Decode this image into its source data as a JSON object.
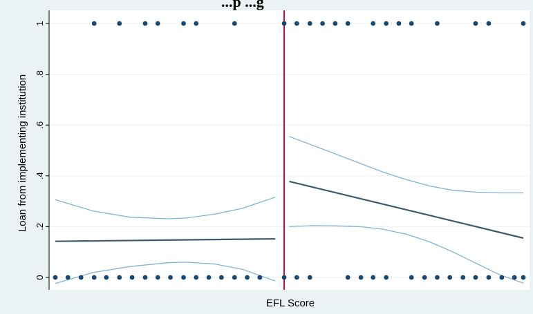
{
  "chart_data": {
    "type": "scatter",
    "title": "...p    ...g",
    "xlabel": "EFL Score",
    "ylabel": "Loan from implementing institution",
    "x_range": [
      0,
      100
    ],
    "ylim": [
      0,
      1
    ],
    "yticks": [
      {
        "value": 0,
        "label": "0"
      },
      {
        "value": 0.2,
        "label": ".2"
      },
      {
        "value": 0.4,
        "label": ".4"
      },
      {
        "value": 0.6,
        "label": ".6"
      },
      {
        "value": 0.8,
        "label": ".8"
      },
      {
        "value": 1,
        "label": "1"
      }
    ],
    "grid": true,
    "legend": "none",
    "cutoff_x": 48.9,
    "colors": {
      "background": "#eaf2f3",
      "plot_background": "#ffffff",
      "points": "#1a476f",
      "fit_line": "#3e5b6e",
      "ci_line": "#7fb2d6",
      "cutoff": "#b0103a",
      "grid": "#eaf2f3"
    },
    "points_y1_x": [
      8.3,
      13.7,
      19.2,
      21.9,
      27.4,
      30.1,
      38.3,
      48.9,
      51.6,
      54.4,
      57.1,
      59.8,
      62.5,
      67.9,
      70.7,
      73.4,
      76.1,
      81.6,
      89.8,
      92.6,
      100
    ],
    "points_y0_x": [
      0,
      2.7,
      5.5,
      8.3,
      10.9,
      13.7,
      16.4,
      19.2,
      21.9,
      24.6,
      27.4,
      30.1,
      32.8,
      35.5,
      38.3,
      41,
      43.7,
      48.9,
      51.6,
      54.4,
      62.5,
      65.3,
      67.9,
      70.7,
      76.1,
      78.9,
      81.6,
      84.3,
      87.1,
      89.8,
      92.6,
      95.4,
      98.1,
      100
    ],
    "series": [
      {
        "side": "left",
        "kind": "fit",
        "x": [
          0,
          47
        ],
        "y": [
          0.142,
          0.152
        ]
      },
      {
        "side": "left",
        "kind": "ci_upper",
        "x": [
          0,
          8,
          16,
          24,
          28,
          34,
          40,
          47
        ],
        "y": [
          0.306,
          0.262,
          0.237,
          0.231,
          0.234,
          0.249,
          0.272,
          0.316
        ]
      },
      {
        "side": "left",
        "kind": "ci_lower",
        "x": [
          0,
          8,
          16,
          24,
          28,
          34,
          40,
          47
        ],
        "y": [
          -0.024,
          0.019,
          0.043,
          0.058,
          0.06,
          0.053,
          0.032,
          -0.014
        ]
      },
      {
        "side": "right",
        "kind": "fit",
        "x": [
          50,
          100
        ],
        "y": [
          0.378,
          0.155
        ]
      },
      {
        "side": "right",
        "kind": "ci_upper",
        "x": [
          50,
          55,
          60,
          65,
          70,
          75,
          80,
          85,
          90,
          95,
          100
        ],
        "y": [
          0.555,
          0.52,
          0.485,
          0.45,
          0.415,
          0.385,
          0.36,
          0.343,
          0.336,
          0.333,
          0.333
        ]
      },
      {
        "side": "right",
        "kind": "ci_lower",
        "x": [
          50,
          55,
          60,
          65,
          70,
          75,
          80,
          85,
          90,
          95,
          100
        ],
        "y": [
          0.2,
          0.204,
          0.203,
          0.2,
          0.19,
          0.17,
          0.14,
          0.1,
          0.055,
          0.01,
          -0.022
        ]
      }
    ]
  }
}
